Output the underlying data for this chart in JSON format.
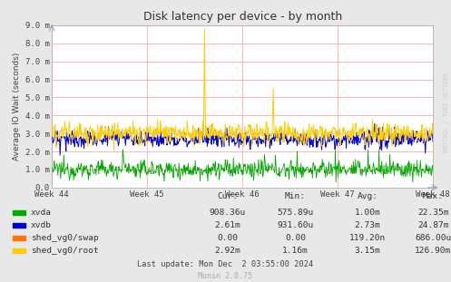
{
  "title": "Disk latency per device - by month",
  "ylabel": "Average IO Wait (seconds)",
  "background_color": "#E8E8E8",
  "plot_bg_color": "#FFFFFF",
  "grid_color": "#FFAAAA",
  "ylim": [
    0.0,
    0.009
  ],
  "yticks": [
    0.0,
    0.001,
    0.002,
    0.003,
    0.004,
    0.005,
    0.006,
    0.007,
    0.008,
    0.009
  ],
  "ytick_labels": [
    "0.0",
    "1.0 m",
    "2.0 m",
    "3.0 m",
    "4.0 m",
    "5.0 m",
    "6.0 m",
    "7.0 m",
    "8.0 m",
    "9.0 m"
  ],
  "week_labels": [
    "Week 44",
    "Week 45",
    "Week 46",
    "Week 47",
    "Week 48"
  ],
  "series_colors": [
    "#00AA00",
    "#0000CC",
    "#FF7700",
    "#FFCC00"
  ],
  "legend_labels": [
    "xvda",
    "xvdb",
    "shed_vg0/swap",
    "shed_vg0/root"
  ],
  "table_headers": [
    "Cur:",
    "Min:",
    "Avg:",
    "Max:"
  ],
  "table_rows": [
    [
      "908.36u",
      "575.89u",
      "1.00m",
      "22.35m"
    ],
    [
      "2.61m",
      "931.60u",
      "2.73m",
      "24.87m"
    ],
    [
      "0.00",
      "0.00",
      "119.20n",
      "686.00u"
    ],
    [
      "2.92m",
      "1.16m",
      "3.15m",
      "126.90m"
    ]
  ],
  "footer": "Last update: Mon Dec  2 03:55:00 2024",
  "munin_label": "Munin 2.0.75",
  "watermark": "RRDTOOL / TOBI OETIKER"
}
